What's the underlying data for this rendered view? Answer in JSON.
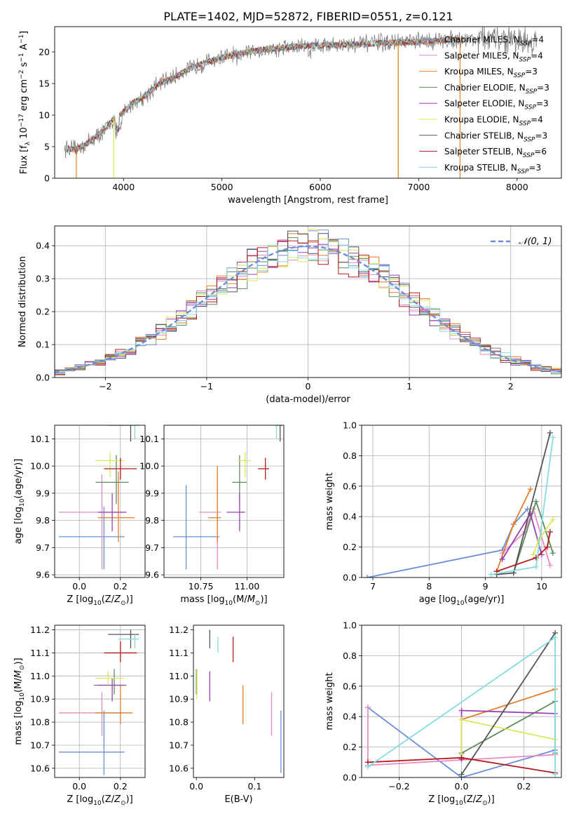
{
  "title": "PLATE=1402, MJD=52872, FIBERID=0551, z=0.121",
  "colors": {
    "c0": "#6a8fd8",
    "c1": "#e57f2a",
    "c2": "#5e8c5e",
    "c3": "#9b3fb5",
    "c4": "#d9e85a",
    "c5": "#555555",
    "c6": "#b31b1b",
    "c7": "#85dbe0",
    "c8": "#e88bc0",
    "grid": "#b0b0b0",
    "spec_gray": "#7f7f7f"
  },
  "chart_data": [
    {
      "type": "line",
      "id": "spectrum",
      "xlabel": "wavelength [Angstrom, rest frame]",
      "ylabel": "Flux [f_λ 10^-17 erg cm^-2 s^-1 A^-1]",
      "xlim": [
        3300,
        8450
      ],
      "ylim": [
        0,
        24
      ],
      "xticks": [
        4000,
        5000,
        6000,
        7000,
        8000
      ],
      "yticks": [
        0,
        5,
        10,
        15,
        20
      ],
      "continuum": {
        "x": [
          3400,
          3500,
          3600,
          3700,
          3800,
          3900,
          4000,
          4100,
          4200,
          4300,
          4400,
          4500,
          4600,
          4700,
          4800,
          4900,
          5000,
          5200,
          5400,
          5600,
          5800,
          6000,
          6200,
          6400,
          6600,
          6800,
          7000,
          7200,
          7400,
          7600,
          7800,
          8000,
          8200
        ],
        "y": [
          4.8,
          4.5,
          5.2,
          6.3,
          7.5,
          9.5,
          10.5,
          12.0,
          12.8,
          14.2,
          15.3,
          15.8,
          16.8,
          17.5,
          18.2,
          18.6,
          19.1,
          19.8,
          20.3,
          20.6,
          20.9,
          21.1,
          21.1,
          21.2,
          21.4,
          21.5,
          21.6,
          21.8,
          22.0,
          22.1,
          21.9,
          21.8,
          21.5
        ]
      },
      "legend": [
        {
          "label": "Chabrier MILES, N_SSP=4",
          "color": "c0"
        },
        {
          "label": "Salpeter MILES, N_SSP=4",
          "color": "c8"
        },
        {
          "label": "Kroupa MILES, N_SSP=3",
          "color": "c1"
        },
        {
          "label": "Chabrier ELODIE, N_SSP=3",
          "color": "c2"
        },
        {
          "label": "Salpeter ELODIE, N_SSP=3",
          "color": "c3"
        },
        {
          "label": "Kroupa ELODIE, N_SSP=4",
          "color": "c4"
        },
        {
          "label": "Chabrier STELIB, N_SSP=3",
          "color": "c5"
        },
        {
          "label": "Salpeter STELIB, N_SSP=6",
          "color": "c6"
        },
        {
          "label": "Kroupa STELIB, N_SSP=3",
          "color": "c7"
        }
      ]
    },
    {
      "type": "line",
      "id": "residuals",
      "xlabel": "(data-model)/error",
      "ylabel": "Normed distribution",
      "xlim": [
        -2.5,
        2.5
      ],
      "ylim": [
        0,
        0.46
      ],
      "xticks": [
        -2,
        -1,
        0,
        1,
        2
      ],
      "yticks": [
        0.0,
        0.1,
        0.2,
        0.3,
        0.4
      ],
      "grid": true,
      "legend": [
        {
          "label": "𝒩(0, 1)",
          "color": "c0",
          "style": "dashed"
        }
      ]
    },
    {
      "type": "scatter",
      "id": "age_vs_Z",
      "xlabel": "Z [log10(Z/Z☉)]",
      "ylabel": "age  [log10(age/yr)]",
      "xlim": [
        -0.12,
        0.32
      ],
      "ylim": [
        9.59,
        10.15
      ],
      "xticks": [
        0.0,
        0.2
      ],
      "yticks": [
        9.6,
        9.7,
        9.8,
        9.9,
        10.0,
        10.1
      ],
      "grid": true,
      "points": [
        {
          "c": "c0",
          "x": 0.12,
          "xlo": -0.1,
          "xhi": 0.22,
          "y": 9.74,
          "ylo": 9.62,
          "yhi": 9.85
        },
        {
          "c": "c8",
          "x": 0.11,
          "xlo": -0.1,
          "xhi": 0.22,
          "y": 9.83,
          "ylo": 9.62,
          "yhi": 9.97
        },
        {
          "c": "c1",
          "x": 0.19,
          "xlo": 0.09,
          "xhi": 0.27,
          "y": 9.81,
          "ylo": 9.72,
          "yhi": 9.98
        },
        {
          "c": "c2",
          "x": 0.18,
          "xlo": 0.08,
          "xhi": 0.24,
          "y": 9.94,
          "ylo": 9.86,
          "yhi": 10.04
        },
        {
          "c": "c3",
          "x": 0.16,
          "xlo": 0.09,
          "xhi": 0.23,
          "y": 9.83,
          "ylo": 9.76,
          "yhi": 9.9
        },
        {
          "c": "c4",
          "x": 0.15,
          "xlo": 0.08,
          "xhi": 0.22,
          "y": 10.02,
          "ylo": 9.96,
          "yhi": 10.05
        },
        {
          "c": "c5",
          "x": 0.25,
          "xlo": 0.14,
          "xhi": 0.29,
          "y": 10.15,
          "ylo": 10.09,
          "yhi": 10.16
        },
        {
          "c": "c6",
          "x": 0.2,
          "xlo": 0.12,
          "xhi": 0.28,
          "y": 9.99,
          "ylo": 9.95,
          "yhi": 10.03
        },
        {
          "c": "c7",
          "x": 0.27,
          "xlo": 0.2,
          "xhi": 0.29,
          "y": 10.15,
          "ylo": 10.1,
          "yhi": 10.16
        }
      ]
    },
    {
      "type": "scatter",
      "id": "age_vs_mass",
      "xlabel": "mass [log10(M/M☉)]",
      "ylabel": "",
      "xlim": [
        10.55,
        11.2
      ],
      "ylim": [
        9.59,
        10.15
      ],
      "xticks": [
        10.75,
        11.0
      ],
      "yticks": [
        9.6,
        9.7,
        9.8,
        9.9,
        10.0,
        10.1
      ],
      "grid": true,
      "points": [
        {
          "c": "c0",
          "x": 10.67,
          "xlo": 10.6,
          "xhi": 10.85,
          "y": 9.74,
          "ylo": 9.62,
          "yhi": 9.93
        },
        {
          "c": "c8",
          "x": 10.84,
          "xlo": 10.74,
          "xhi": 10.86,
          "y": 9.83,
          "ylo": 9.62,
          "yhi": 9.97
        },
        {
          "c": "c1",
          "x": 10.84,
          "xlo": 10.79,
          "xhi": 10.86,
          "y": 9.81,
          "ylo": 9.72,
          "yhi": 10.0
        },
        {
          "c": "c2",
          "x": 10.96,
          "xlo": 10.92,
          "xhi": 11.0,
          "y": 9.94,
          "ylo": 9.86,
          "yhi": 10.04
        },
        {
          "c": "c3",
          "x": 10.96,
          "xlo": 10.89,
          "xhi": 10.99,
          "y": 9.83,
          "ylo": 9.76,
          "yhi": 9.9
        },
        {
          "c": "c4",
          "x": 10.99,
          "xlo": 10.95,
          "xhi": 11.02,
          "y": 10.02,
          "ylo": 9.96,
          "yhi": 10.05
        },
        {
          "c": "c5",
          "x": 11.18,
          "xlo": 11.16,
          "xhi": 11.19,
          "y": 10.15,
          "ylo": 10.09,
          "yhi": 10.16
        },
        {
          "c": "c6",
          "x": 11.1,
          "xlo": 11.06,
          "xhi": 11.12,
          "y": 9.99,
          "ylo": 9.95,
          "yhi": 10.03
        },
        {
          "c": "c7",
          "x": 11.16,
          "xlo": 11.13,
          "xhi": 11.18,
          "y": 10.15,
          "ylo": 10.1,
          "yhi": 10.16
        }
      ]
    },
    {
      "type": "line",
      "id": "mass_weight_vs_age",
      "xlabel": "age  [log10(age/yr)]",
      "ylabel": "mass weight",
      "xlim": [
        6.8,
        10.35
      ],
      "ylim": [
        0,
        1
      ],
      "xticks": [
        7,
        8,
        9,
        10
      ],
      "yticks": [
        0.0,
        0.2,
        0.4,
        0.6,
        0.8,
        1.0
      ],
      "grid": true,
      "series": [
        {
          "c": "c0",
          "x": [
            6.9,
            9.3,
            9.5,
            9.75
          ],
          "y": [
            0.0,
            0.18,
            0.35,
            0.45
          ]
        },
        {
          "c": "c8",
          "x": [
            9.3,
            9.7,
            9.85,
            10.15
          ],
          "y": [
            0.16,
            0.3,
            0.45,
            0.08
          ]
        },
        {
          "c": "c1",
          "x": [
            9.2,
            9.5,
            9.8
          ],
          "y": [
            0.04,
            0.35,
            0.58
          ]
        },
        {
          "c": "c2",
          "x": [
            9.5,
            9.9,
            10.2
          ],
          "y": [
            0.03,
            0.5,
            0.16
          ]
        },
        {
          "c": "c3",
          "x": [
            9.3,
            9.8,
            10.0
          ],
          "y": [
            0.12,
            0.42,
            0.15
          ]
        },
        {
          "c": "c4",
          "x": [
            9.85,
            9.95,
            10.2
          ],
          "y": [
            0.15,
            0.25,
            0.38
          ]
        },
        {
          "c": "c5",
          "x": [
            9.2,
            9.5,
            10.15
          ],
          "y": [
            0.02,
            0.03,
            0.95
          ]
        },
        {
          "c": "c6",
          "x": [
            9.2,
            9.9,
            10.1,
            10.15
          ],
          "y": [
            0.04,
            0.13,
            0.2,
            0.3
          ]
        },
        {
          "c": "c7",
          "x": [
            9.1,
            9.9,
            10.2
          ],
          "y": [
            0.02,
            0.07,
            0.92
          ]
        }
      ]
    },
    {
      "type": "scatter",
      "id": "mass_vs_Z",
      "xlabel": "Z [log10(Z/Z☉)]",
      "ylabel": "mass [log10(M/M☉)]",
      "xlim": [
        -0.12,
        0.32
      ],
      "ylim": [
        10.56,
        11.22
      ],
      "xticks": [
        0.0,
        0.2
      ],
      "yticks": [
        10.6,
        10.7,
        10.8,
        10.9,
        11.0,
        11.1,
        11.2
      ],
      "grid": true,
      "points": [
        {
          "c": "c0",
          "x": 0.12,
          "xlo": -0.1,
          "xhi": 0.22,
          "y": 10.67,
          "ylo": 10.57,
          "yhi": 10.85
        },
        {
          "c": "c8",
          "x": 0.11,
          "xlo": -0.1,
          "xhi": 0.22,
          "y": 10.84,
          "ylo": 10.74,
          "yhi": 10.93
        },
        {
          "c": "c1",
          "x": 0.2,
          "xlo": 0.08,
          "xhi": 0.26,
          "y": 10.84,
          "ylo": 10.79,
          "yhi": 10.96
        },
        {
          "c": "c2",
          "x": 0.17,
          "xlo": 0.07,
          "xhi": 0.23,
          "y": 10.96,
          "ylo": 10.92,
          "yhi": 11.03
        },
        {
          "c": "c3",
          "x": 0.16,
          "xlo": 0.09,
          "xhi": 0.22,
          "y": 10.96,
          "ylo": 10.89,
          "yhi": 10.99
        },
        {
          "c": "c4",
          "x": 0.14,
          "xlo": 0.08,
          "xhi": 0.22,
          "y": 10.99,
          "ylo": 10.96,
          "yhi": 11.02
        },
        {
          "c": "c5",
          "x": 0.25,
          "xlo": 0.14,
          "xhi": 0.29,
          "y": 11.18,
          "ylo": 11.12,
          "yhi": 11.2
        },
        {
          "c": "c6",
          "x": 0.2,
          "xlo": 0.12,
          "xhi": 0.28,
          "y": 11.1,
          "ylo": 11.06,
          "yhi": 11.15
        },
        {
          "c": "c7",
          "x": 0.27,
          "xlo": 0.19,
          "xhi": 0.29,
          "y": 11.16,
          "ylo": 11.12,
          "yhi": 11.18
        }
      ]
    },
    {
      "type": "scatter",
      "id": "mass_vs_ebv",
      "xlabel": "E(B-V)",
      "ylabel": "",
      "xlim": [
        -0.005,
        0.15
      ],
      "ylim": [
        10.56,
        11.22
      ],
      "xticks": [
        0.0,
        0.1
      ],
      "yticks": [
        10.6,
        10.7,
        10.8,
        10.9,
        11.0,
        11.1,
        11.2
      ],
      "points": [
        {
          "c": "c0",
          "x": 0.145,
          "ylo": 10.58,
          "yhi": 10.85
        },
        {
          "c": "c8",
          "x": 0.129,
          "ylo": 10.74,
          "yhi": 10.93
        },
        {
          "c": "c1",
          "x": 0.08,
          "ylo": 10.79,
          "yhi": 10.96
        },
        {
          "c": "c2",
          "x": 0.0,
          "ylo": 10.92,
          "yhi": 11.03
        },
        {
          "c": "c3",
          "x": 0.023,
          "ylo": 10.89,
          "yhi": 11.02
        },
        {
          "c": "c4",
          "x": 0.001,
          "ylo": 10.9,
          "yhi": 11.03
        },
        {
          "c": "c5",
          "x": 0.023,
          "ylo": 11.12,
          "yhi": 11.2
        },
        {
          "c": "c6",
          "x": 0.063,
          "ylo": 11.06,
          "yhi": 11.17
        },
        {
          "c": "c7",
          "x": 0.037,
          "ylo": 11.1,
          "yhi": 11.17
        }
      ]
    },
    {
      "type": "line",
      "id": "mass_weight_vs_Z",
      "xlabel": "Z [log10(Z/Z☉)]",
      "ylabel": "mass weight",
      "xlim": [
        -0.32,
        0.32
      ],
      "ylim": [
        0,
        1
      ],
      "xticks": [
        -0.2,
        0.0,
        0.2
      ],
      "yticks": [
        0.0,
        0.2,
        0.4,
        0.6,
        0.8,
        1.0
      ],
      "grid": true,
      "series": [
        {
          "c": "c0",
          "x": [
            -0.3,
            0.0,
            0.3
          ],
          "y": [
            0.46,
            0.0,
            0.18
          ]
        },
        {
          "c": "c8",
          "x": [
            -0.3,
            -0.3,
            0.3
          ],
          "y": [
            0.46,
            0.08,
            0.15
          ]
        },
        {
          "c": "c1",
          "x": [
            0.0,
            0.3
          ],
          "y": [
            0.38,
            0.58
          ]
        },
        {
          "c": "c2",
          "x": [
            0.0,
            0.3,
            0.3
          ],
          "y": [
            0.16,
            0.5,
            0.16
          ]
        },
        {
          "c": "c3",
          "x": [
            0.0,
            0.0,
            0.3
          ],
          "y": [
            0.12,
            0.44,
            0.42
          ]
        },
        {
          "c": "c4",
          "x": [
            0.0,
            0.0,
            0.3
          ],
          "y": [
            0.15,
            0.38,
            0.25
          ]
        },
        {
          "c": "c5",
          "x": [
            0.0,
            0.3
          ],
          "y": [
            0.02,
            0.95
          ]
        },
        {
          "c": "c6",
          "x": [
            -0.3,
            0.0,
            0.3
          ],
          "y": [
            0.1,
            0.13,
            0.03
          ]
        },
        {
          "c": "c7",
          "x": [
            -0.3,
            0.3,
            0.3
          ],
          "y": [
            0.07,
            0.92,
            0.02
          ]
        }
      ]
    }
  ]
}
